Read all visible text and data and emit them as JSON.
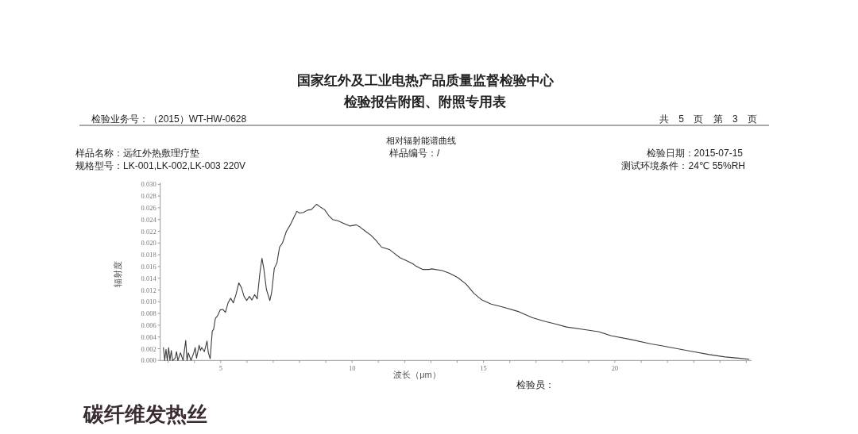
{
  "chart_data": {
    "type": "line",
    "title": "国家红外及工业电热产品质量监督检验中心",
    "subtitle": "检验报告附图、附照专用表",
    "xlabel": "波长（μm）",
    "ylabel": "辐射度",
    "annotations": [
      "检验业务号：（2015）WT-HW-0628",
      "共 5 页 第 3 页",
      "相对辐射能谱曲线",
      "样品名称：远红外热敷理疗垫",
      "样品编号：/",
      "检验日期：2015-07-15",
      "规格型号：LK-001,LK-002,LK-003 220V",
      "测试环境条件：24℃ 55%RH",
      "检验员：",
      "碳纤维发热丝"
    ],
    "x": [
      2.82,
      2.87,
      2.92,
      2.97,
      3.02,
      3.07,
      3.12,
      3.17,
      3.27,
      3.32,
      3.37,
      3.47,
      3.57,
      3.67,
      3.72,
      3.77,
      3.87,
      3.97,
      4.03,
      4.08,
      4.18,
      4.23,
      4.28,
      4.38,
      4.48,
      4.53,
      4.6,
      4.68,
      4.73,
      4.8,
      4.88,
      4.98,
      5.08,
      5.18,
      5.28,
      5.38,
      5.48,
      5.58,
      5.69,
      5.79,
      5.89,
      5.99,
      6.09,
      6.19,
      6.29,
      6.39,
      6.49,
      6.57,
      6.64,
      6.74,
      6.87,
      6.94,
      7.04,
      7.14,
      7.24,
      7.35,
      7.5,
      7.65,
      7.8,
      7.9,
      8.0,
      8.15,
      8.3,
      8.45,
      8.65,
      8.8,
      8.95,
      9.11,
      9.26,
      9.46,
      9.71,
      9.91,
      10.16,
      10.31,
      10.51,
      10.72,
      10.92,
      11.12,
      11.27,
      11.42,
      11.62,
      11.82,
      12.02,
      12.3,
      12.42,
      12.68,
      12.93,
      13.03,
      13.43,
      13.73,
      14.03,
      14.34,
      14.64,
      14.94,
      15.29,
      15.74,
      16.35,
      16.85,
      17.3,
      17.76,
      18.16,
      18.76,
      19.37,
      19.87,
      20.57,
      21.38,
      21.78,
      22.38,
      22.99,
      23.59,
      24.19,
      24.7,
      25.1
    ],
    "series": [
      {
        "color": "#3c3c3c",
        "values": [
          0.0022,
          0,
          0.0019,
          0,
          0.0022,
          0,
          0.0017,
          0,
          0.0004,
          0.0015,
          0,
          0.0013,
          0,
          0.0034,
          0,
          0.0013,
          0,
          0.0012,
          0.0022,
          0.0004,
          0.0026,
          0.0017,
          0.0022,
          0.0015,
          0.0033,
          0.0013,
          0.0003,
          0.005,
          0.0053,
          0.0072,
          0.0076,
          0.0086,
          0.0087,
          0.0082,
          0.0098,
          0.0106,
          0.0098,
          0.0112,
          0.0132,
          0.0124,
          0.0109,
          0.0102,
          0.0109,
          0.0103,
          0.0112,
          0.0105,
          0.0148,
          0.0174,
          0.0157,
          0.0121,
          0.0102,
          0.0116,
          0.0157,
          0.0166,
          0.0193,
          0.02,
          0.022,
          0.0231,
          0.0245,
          0.0254,
          0.0251,
          0.0252,
          0.0256,
          0.0257,
          0.0266,
          0.0261,
          0.0257,
          0.0247,
          0.024,
          0.0238,
          0.0233,
          0.0229,
          0.0231,
          0.0227,
          0.022,
          0.0213,
          0.0204,
          0.0193,
          0.0191,
          0.0189,
          0.0182,
          0.0175,
          0.0171,
          0.0165,
          0.0161,
          0.0155,
          0.0155,
          0.0156,
          0.0153,
          0.0148,
          0.0141,
          0.013,
          0.0114,
          0.0103,
          0.0096,
          0.0091,
          0.0083,
          0.0073,
          0.0067,
          0.0062,
          0.0057,
          0.0053,
          0.0049,
          0.0042,
          0.0036,
          0.0028,
          0.0025,
          0.002,
          0.0015,
          0.001,
          0.0006,
          0.0004,
          0.0002
        ]
      }
    ],
    "xlim": [
      2.7,
      25.2
    ],
    "ylim": [
      0,
      0.03
    ],
    "xticks": [
      {
        "value": 3,
        "label": null
      },
      {
        "value": 4,
        "label": null
      },
      5,
      {
        "value": 6,
        "label": null
      },
      {
        "value": 7,
        "label": null
      },
      {
        "value": 8,
        "label": null
      },
      {
        "value": 9,
        "label": null
      },
      10,
      {
        "value": 11,
        "label": null
      },
      {
        "value": 12,
        "label": null
      },
      {
        "value": 13,
        "label": null
      },
      {
        "value": 14,
        "label": null
      },
      15,
      {
        "value": 16,
        "label": null
      },
      {
        "value": 17,
        "label": null
      },
      {
        "value": 18,
        "label": null
      },
      {
        "value": 19,
        "label": null
      },
      20,
      {
        "value": 21,
        "label": null
      },
      {
        "value": 22,
        "label": null
      },
      {
        "value": 23,
        "label": null
      },
      {
        "value": 24,
        "label": null
      },
      {
        "value": 25,
        "label": null
      }
    ],
    "yticks": [
      {
        "value": 0,
        "label": "0.000"
      },
      {
        "value": 0.002,
        "label": "0.002"
      },
      {
        "value": 0.004,
        "label": "0.004"
      },
      {
        "value": 0.006,
        "label": "0.006"
      },
      {
        "value": 0.008,
        "label": "0.008"
      },
      {
        "value": 0.01,
        "label": "0.010"
      },
      {
        "value": 0.012,
        "label": "0.012"
      },
      {
        "value": 0.014,
        "label": "0.014"
      },
      {
        "value": 0.016,
        "label": "0.016"
      },
      {
        "value": 0.018,
        "label": "0.018"
      },
      {
        "value": 0.02,
        "label": "0.020"
      },
      {
        "value": 0.022,
        "label": "0.022"
      },
      {
        "value": 0.024,
        "label": "0.024"
      },
      {
        "value": 0.026,
        "label": "0.026"
      },
      {
        "value": 0.028,
        "label": "0.028"
      },
      {
        "value": 0.03,
        "label": "0.030"
      }
    ]
  }
}
